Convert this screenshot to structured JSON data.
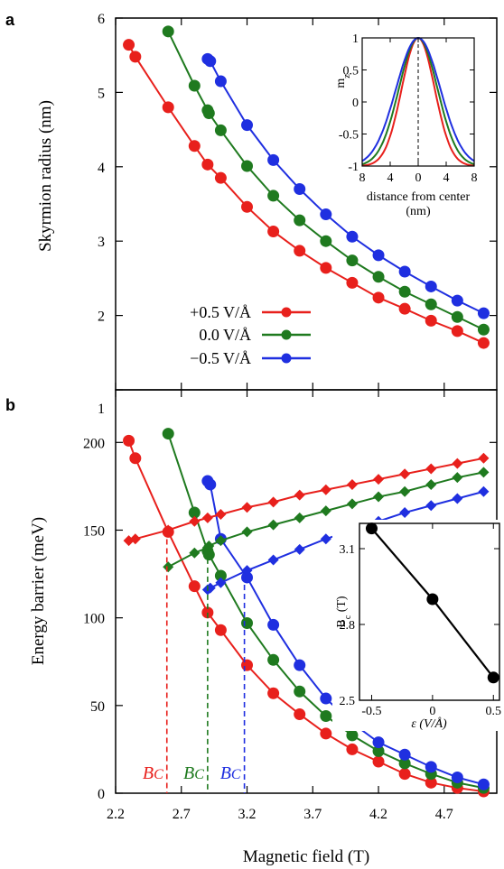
{
  "colors": {
    "plus": "#e8201c",
    "zero": "#1f7a1f",
    "minus": "#1f2fe0",
    "black": "#000000"
  },
  "chart_data": [
    {
      "panel": "a",
      "type": "line",
      "ylabel": "Skyrmion radius (nm)",
      "xlim": [
        2.2,
        5.1
      ],
      "ylim": [
        1,
        6
      ],
      "yticks": [
        1,
        2,
        3,
        4,
        5,
        6
      ],
      "legend": {
        "placement": "center-left"
      },
      "series": [
        {
          "name": "+0.5 V/Å",
          "color": "#e8201c",
          "x": [
            2.3,
            2.35,
            2.6,
            2.8,
            2.9,
            3.0,
            3.2,
            3.4,
            3.6,
            3.8,
            4.0,
            4.2,
            4.4,
            4.6,
            4.8,
            5.0
          ],
          "y": [
            5.64,
            5.48,
            4.8,
            4.28,
            4.03,
            3.85,
            3.46,
            3.13,
            2.87,
            2.64,
            2.44,
            2.24,
            2.09,
            1.93,
            1.79,
            1.63
          ]
        },
        {
          "name": "0.0 V/Å",
          "color": "#1f7a1f",
          "x": [
            2.6,
            2.8,
            2.9,
            2.91,
            3.0,
            3.2,
            3.4,
            3.6,
            3.8,
            4.0,
            4.2,
            4.4,
            4.6,
            4.8,
            5.0
          ],
          "y": [
            5.82,
            5.09,
            4.76,
            4.72,
            4.49,
            4.01,
            3.61,
            3.28,
            3.0,
            2.74,
            2.52,
            2.32,
            2.15,
            1.98,
            1.81
          ]
        },
        {
          "name": "−0.5 V/Å",
          "color": "#1f2fe0",
          "x": [
            2.9,
            2.92,
            3.0,
            3.2,
            3.4,
            3.6,
            3.8,
            4.0,
            4.2,
            4.4,
            4.6,
            4.8,
            5.0
          ],
          "y": [
            5.45,
            5.42,
            5.15,
            4.56,
            4.09,
            3.7,
            3.36,
            3.06,
            2.81,
            2.59,
            2.39,
            2.2,
            2.03
          ]
        }
      ]
    },
    {
      "panel": "b",
      "type": "line",
      "xlabel": "Magnetic field (T)",
      "ylabel": "Energy barrier (meV)",
      "xlim": [
        2.2,
        5.1
      ],
      "ylim": [
        0,
        230
      ],
      "xticks": [
        "2.2",
        "2.7",
        "3.2",
        "3.7",
        "4.2",
        "4.7"
      ],
      "yticks": [
        0,
        50,
        100,
        150,
        200
      ],
      "series": [
        {
          "name": "+0.5 V/Å circles",
          "color": "#e8201c",
          "marker": "circle",
          "x": [
            2.3,
            2.35,
            2.6,
            2.8,
            2.9,
            3.0,
            3.2,
            3.4,
            3.6,
            3.8,
            4.0,
            4.2,
            4.4,
            4.6,
            4.8,
            5.0
          ],
          "y": [
            201,
            191,
            149,
            118,
            103,
            93,
            73,
            57,
            45,
            34,
            25,
            18,
            11,
            6,
            3,
            1
          ]
        },
        {
          "name": "0.0 V/Å circles",
          "color": "#1f7a1f",
          "marker": "circle",
          "x": [
            2.6,
            2.8,
            2.9,
            2.91,
            3.0,
            3.2,
            3.4,
            3.6,
            3.8,
            4.0,
            4.2,
            4.4,
            4.6,
            4.8,
            5.0
          ],
          "y": [
            205,
            160,
            138,
            136,
            124,
            97,
            76,
            58,
            44,
            33,
            24,
            17,
            11,
            6,
            3
          ]
        },
        {
          "name": "−0.5 V/Å circles",
          "color": "#1f2fe0",
          "marker": "circle",
          "x": [
            2.9,
            2.92,
            3.0,
            3.2,
            3.4,
            3.6,
            3.8,
            4.0,
            4.2,
            4.4,
            4.6,
            4.8,
            5.0
          ],
          "y": [
            178,
            176,
            145,
            123,
            96,
            73,
            54,
            40,
            29,
            22,
            15,
            9,
            5
          ]
        },
        {
          "name": "+0.5 V/Å diamonds",
          "color": "#e8201c",
          "marker": "diamond",
          "x": [
            2.3,
            2.35,
            2.6,
            2.8,
            2.9,
            3.0,
            3.2,
            3.4,
            3.6,
            3.8,
            4.0,
            4.2,
            4.4,
            4.6,
            4.8,
            5.0
          ],
          "y": [
            144,
            145,
            150,
            155,
            157,
            159,
            163,
            166,
            170,
            173,
            176,
            179,
            182,
            185,
            188,
            191
          ]
        },
        {
          "name": "0.0 V/Å diamonds",
          "color": "#1f7a1f",
          "marker": "diamond",
          "x": [
            2.6,
            2.8,
            2.9,
            2.91,
            3.0,
            3.2,
            3.4,
            3.6,
            3.8,
            4.0,
            4.2,
            4.4,
            4.6,
            4.8,
            5.0
          ],
          "y": [
            129,
            137,
            140,
            141,
            144,
            149,
            153,
            157,
            161,
            165,
            169,
            172,
            176,
            180,
            183
          ]
        },
        {
          "name": "−0.5 V/Å diamonds",
          "color": "#1f2fe0",
          "marker": "diamond",
          "x": [
            2.9,
            2.92,
            3.0,
            3.2,
            3.4,
            3.6,
            3.8,
            4.0,
            4.2,
            4.4,
            4.6,
            4.8,
            5.0
          ],
          "y": [
            116,
            117,
            120,
            127,
            133,
            139,
            145,
            150,
            155,
            160,
            164,
            168,
            172
          ]
        }
      ],
      "annotations": {
        "Bc_label": "B",
        "Bc_sub": "C",
        "Bc_values": [
          {
            "x": 2.59,
            "y": 150,
            "color": "#e8201c"
          },
          {
            "x": 2.9,
            "y": 139,
            "color": "#1f7a1f"
          },
          {
            "x": 3.18,
            "y": 124,
            "color": "#1f2fe0"
          }
        ]
      }
    },
    {
      "panel": "a-inset",
      "type": "line",
      "xlabel": "distance from center (nm)",
      "ylabel": "m_z",
      "xlim": [
        -8,
        8
      ],
      "ylim": [
        -1,
        1
      ],
      "xticks": [
        "8",
        "4",
        "0",
        "4",
        "8"
      ],
      "yticks": [
        "-1",
        "-0.5",
        "0",
        "0.5",
        "1"
      ],
      "profiles": [
        {
          "color": "#e8201c",
          "width_nm": 2.35
        },
        {
          "color": "#1f7a1f",
          "width_nm": 2.75
        },
        {
          "color": "#1f2fe0",
          "width_nm": 3.15
        }
      ]
    },
    {
      "panel": "b-inset",
      "type": "line",
      "xlabel": "ε (V/Å)",
      "ylabel": "B_c (T)",
      "xlim": [
        -0.6,
        0.55
      ],
      "ylim": [
        2.5,
        3.2
      ],
      "xticks": [
        "-0.5",
        "0",
        "0.5"
      ],
      "yticks": [
        "2.5",
        "2.8",
        "3.1"
      ],
      "x": [
        -0.5,
        0.0,
        0.5
      ],
      "y": [
        3.18,
        2.9,
        2.59
      ]
    }
  ],
  "labels": {
    "panel_a": "a",
    "panel_b": "b",
    "top_tick_b": "1",
    "ylabel_a": "Skyrmion radius (nm)",
    "ylabel_b": "Energy barrier (meV)",
    "xlabel": "Magnetic field (T)",
    "legend": [
      "+0.5 V/Å",
      "0.0 V/Å",
      "−0.5 V/Å"
    ],
    "inset_a_ylabel": "m",
    "inset_a_ylabel_sub": "z",
    "inset_a_xlabel_1": "distance from center",
    "inset_a_xlabel_2": "(nm)",
    "inset_b_ylabel": "B",
    "inset_b_ylabel_sub": "c",
    "inset_b_ylabel_unit": " (T)",
    "inset_b_xlabel": "ε (V/Å)"
  }
}
